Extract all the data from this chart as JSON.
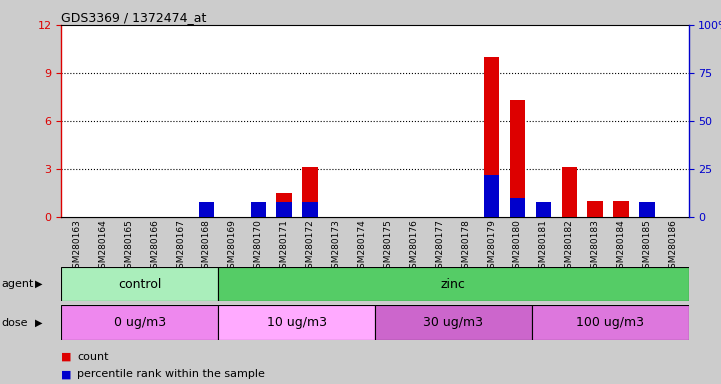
{
  "title": "GDS3369 / 1372474_at",
  "samples": [
    "GSM280163",
    "GSM280164",
    "GSM280165",
    "GSM280166",
    "GSM280167",
    "GSM280168",
    "GSM280169",
    "GSM280170",
    "GSM280171",
    "GSM280172",
    "GSM280173",
    "GSM280174",
    "GSM280175",
    "GSM280176",
    "GSM280177",
    "GSM280178",
    "GSM280179",
    "GSM280180",
    "GSM280181",
    "GSM280182",
    "GSM280183",
    "GSM280184",
    "GSM280185",
    "GSM280186"
  ],
  "count_values": [
    0,
    0,
    0,
    0,
    0,
    0,
    0,
    0,
    1.5,
    3.1,
    0,
    0,
    0,
    0,
    0,
    0,
    10.0,
    7.3,
    0,
    3.1,
    1.0,
    1.0,
    0.5,
    0
  ],
  "percentile_values": [
    0,
    0,
    0,
    0,
    0,
    8,
    0,
    8,
    8,
    8,
    0,
    0,
    0,
    0,
    0,
    0,
    22,
    10,
    8,
    0,
    0,
    0,
    8,
    0
  ],
  "count_color": "#dd0000",
  "percentile_color": "#0000cc",
  "bar_width": 0.6,
  "ylim_left": [
    0,
    12
  ],
  "ylim_right": [
    0,
    100
  ],
  "yticks_left": [
    0,
    3,
    6,
    9,
    12
  ],
  "yticks_right": [
    0,
    25,
    50,
    75,
    100
  ],
  "agent_groups": [
    {
      "label": "control",
      "start": 0,
      "end": 6,
      "color": "#aaeebb"
    },
    {
      "label": "zinc",
      "start": 6,
      "end": 24,
      "color": "#55cc66"
    }
  ],
  "dose_groups": [
    {
      "label": "0 ug/m3",
      "start": 0,
      "end": 6,
      "color": "#ee88ee"
    },
    {
      "label": "10 ug/m3",
      "start": 6,
      "end": 12,
      "color": "#ffaaff"
    },
    {
      "label": "30 ug/m3",
      "start": 12,
      "end": 18,
      "color": "#cc66cc"
    },
    {
      "label": "100 ug/m3",
      "start": 18,
      "end": 24,
      "color": "#dd77dd"
    }
  ],
  "agent_label": "agent",
  "dose_label": "dose",
  "fig_bg_color": "#cccccc",
  "plot_bg_color": "#ffffff",
  "xtick_bg_color": "#cccccc",
  "legend_count": "count",
  "legend_percentile": "percentile rank within the sample"
}
